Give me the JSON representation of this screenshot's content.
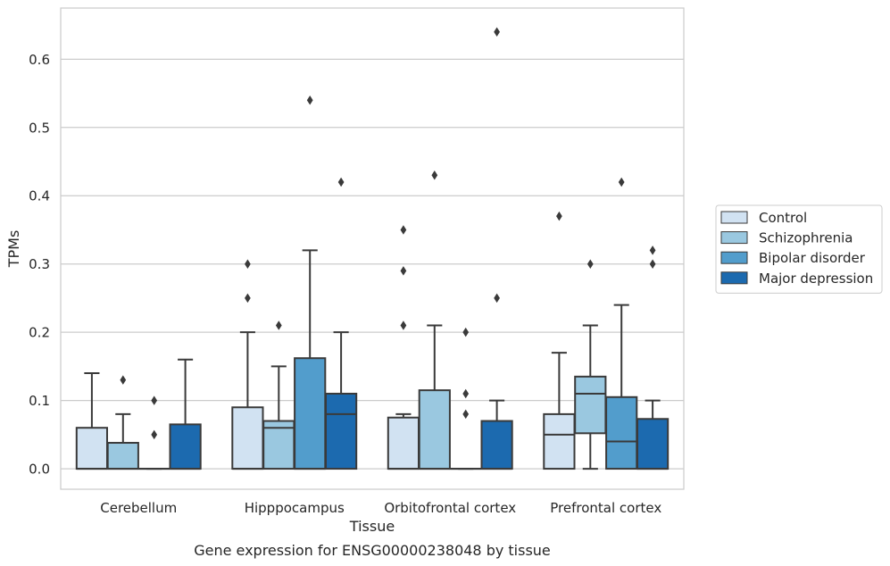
{
  "chart_data": {
    "type": "box",
    "caption": "Gene expression for ENSG00000238048 by tissue",
    "xlabel": "Tissue",
    "ylabel": "TPMs",
    "ylim": [
      -0.03,
      0.675
    ],
    "yticks": [
      0.0,
      0.1,
      0.2,
      0.3,
      0.4,
      0.5,
      0.6
    ],
    "ytick_labels": [
      "0.0",
      "0.1",
      "0.2",
      "0.3",
      "0.4",
      "0.5",
      "0.6"
    ],
    "grid": "horizontal",
    "legend_position": "right",
    "categories": [
      "Cerebellum",
      "Hipppocampus",
      "Orbitofrontal cortex",
      "Prefrontal cortex"
    ],
    "series": [
      {
        "name": "Control",
        "color": "#d1e2f2",
        "boxes": [
          {
            "whisker_low": 0,
            "q1": 0,
            "median": 0,
            "q3": 0.06,
            "whisker_high": 0.14,
            "outliers": []
          },
          {
            "whisker_low": 0,
            "q1": 0,
            "median": 0,
            "q3": 0.09,
            "whisker_high": 0.2,
            "outliers": [
              0.25,
              0.3
            ]
          },
          {
            "whisker_low": 0,
            "q1": 0,
            "median": 0,
            "q3": 0.075,
            "whisker_high": 0.08,
            "outliers": [
              0.21,
              0.29,
              0.35
            ]
          },
          {
            "whisker_low": 0,
            "q1": 0,
            "median": 0.05,
            "q3": 0.08,
            "whisker_high": 0.17,
            "outliers": [
              0.37
            ]
          }
        ]
      },
      {
        "name": "Schizophrenia",
        "color": "#9ac8e0",
        "boxes": [
          {
            "whisker_low": 0,
            "q1": 0,
            "median": 0,
            "q3": 0.038,
            "whisker_high": 0.08,
            "outliers": [
              0.13
            ]
          },
          {
            "whisker_low": 0,
            "q1": 0,
            "median": 0.06,
            "q3": 0.07,
            "whisker_high": 0.15,
            "outliers": [
              0.21
            ]
          },
          {
            "whisker_low": 0,
            "q1": 0,
            "median": 0,
            "q3": 0.115,
            "whisker_high": 0.21,
            "outliers": [
              0.43
            ]
          },
          {
            "whisker_low": 0,
            "q1": 0.052,
            "median": 0.11,
            "q3": 0.135,
            "whisker_high": 0.21,
            "outliers": [
              0.3
            ]
          }
        ]
      },
      {
        "name": "Bipolar disorder",
        "color": "#529dcc",
        "boxes": [
          {
            "whisker_low": 0,
            "q1": 0,
            "median": 0,
            "q3": 0,
            "whisker_high": 0,
            "outliers": [
              0.05,
              0.1
            ]
          },
          {
            "whisker_low": 0,
            "q1": 0,
            "median": 0,
            "q3": 0.162,
            "whisker_high": 0.32,
            "outliers": [
              0.54
            ]
          },
          {
            "whisker_low": 0,
            "q1": 0,
            "median": 0,
            "q3": 0,
            "whisker_high": 0,
            "outliers": [
              0.08,
              0.11,
              0.2
            ]
          },
          {
            "whisker_low": 0,
            "q1": 0,
            "median": 0.04,
            "q3": 0.105,
            "whisker_high": 0.24,
            "outliers": [
              0.42
            ]
          }
        ]
      },
      {
        "name": "Major depression",
        "color": "#1c6aaf",
        "boxes": [
          {
            "whisker_low": 0,
            "q1": 0,
            "median": 0,
            "q3": 0.065,
            "whisker_high": 0.16,
            "outliers": []
          },
          {
            "whisker_low": 0,
            "q1": 0,
            "median": 0.08,
            "q3": 0.11,
            "whisker_high": 0.2,
            "outliers": [
              0.42
            ]
          },
          {
            "whisker_low": 0,
            "q1": 0,
            "median": 0,
            "q3": 0.07,
            "whisker_high": 0.1,
            "outliers": [
              0.25,
              0.64
            ]
          },
          {
            "whisker_low": 0,
            "q1": 0,
            "median": 0,
            "q3": 0.073,
            "whisker_high": 0.1,
            "outliers": [
              0.3,
              0.32
            ]
          }
        ]
      }
    ]
  }
}
